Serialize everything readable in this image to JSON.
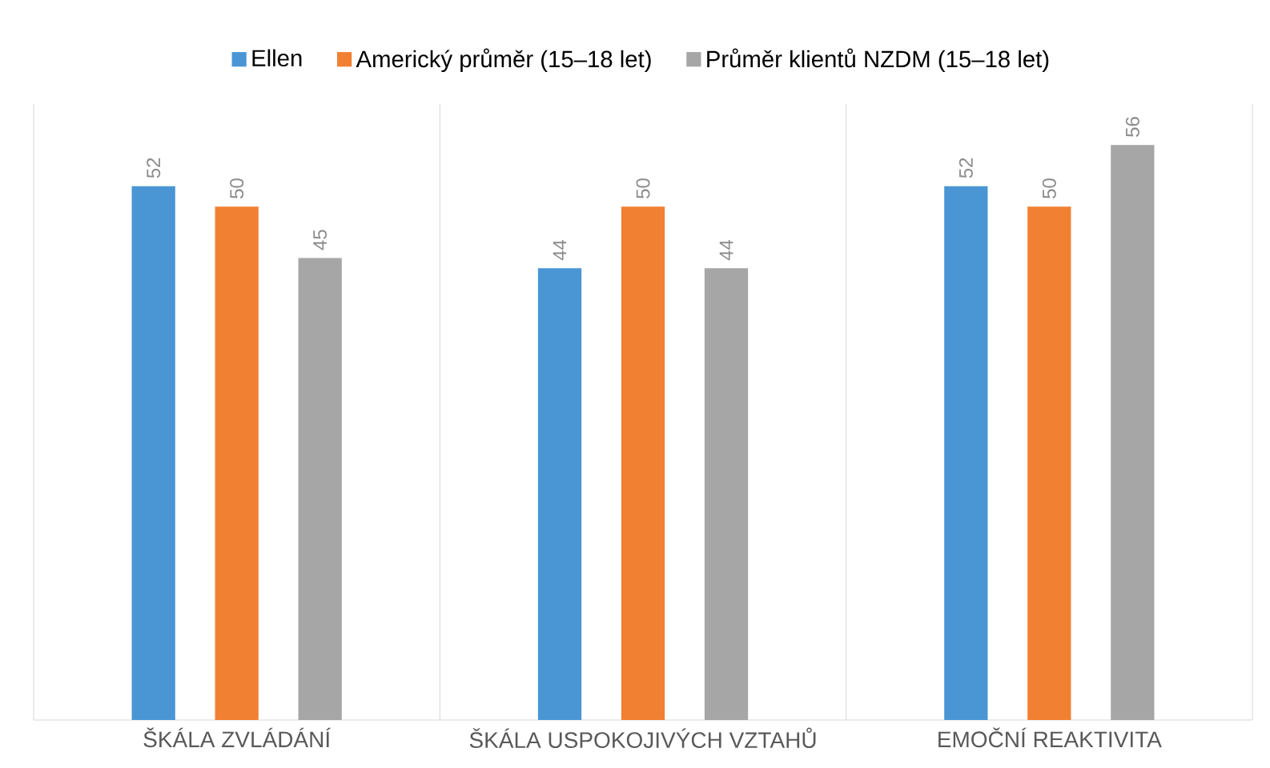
{
  "chart_data": {
    "type": "bar",
    "categories": [
      "ŠKÁLA ZVLÁDÁNÍ",
      "ŠKÁLA USPOKOJIVÝCH VZTAHŮ",
      "EMOČNÍ REAKTIVITA"
    ],
    "series": [
      {
        "name": "Ellen",
        "color": "#4a96d4",
        "values": [
          52,
          44,
          52
        ]
      },
      {
        "name": "Americký průměr (15–18 let)",
        "color": "#f28033",
        "values": [
          50,
          50,
          50
        ]
      },
      {
        "name": "Průměr klientů NZDM (15–18 let)",
        "color": "#a6a6a6",
        "values": [
          45,
          44,
          56
        ]
      }
    ],
    "ylim": [
      0,
      60
    ],
    "grid": "x",
    "legend": "top",
    "data_labels": true
  }
}
